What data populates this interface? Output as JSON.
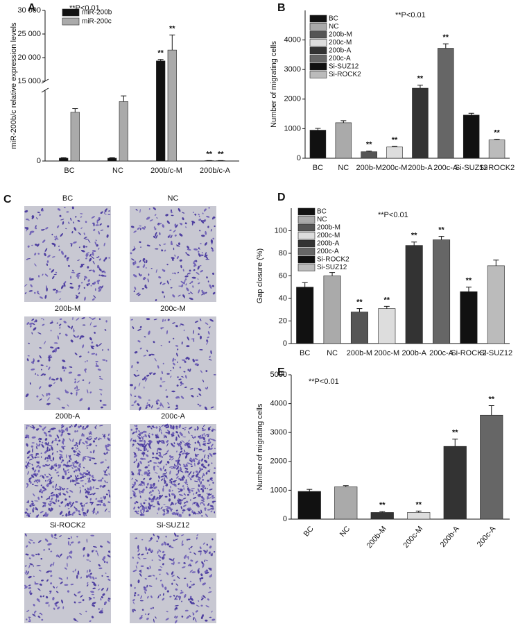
{
  "chart_data": [
    {
      "type": "bar",
      "panel": "A",
      "note": "**P<0.01",
      "ylabel": "miR-200b/c relative expression levels",
      "categories": [
        "BC",
        "NC",
        "200b/c-M",
        "200b/c-A"
      ],
      "series": [
        {
          "name": "miR-200b",
          "color": "#111111",
          "values": [
            400,
            400,
            19300,
            50
          ],
          "errors": [
            80,
            80,
            300,
            10
          ],
          "markers": [
            null,
            null,
            "**",
            "**"
          ]
        },
        {
          "name": "miR-200c",
          "color": "#aaaaaa",
          "values": [
            6900,
            8400,
            21600,
            50
          ],
          "errors": [
            500,
            800,
            3200,
            10
          ],
          "markers": [
            null,
            null,
            "**",
            "**"
          ]
        }
      ],
      "ylim": [
        0,
        30000
      ],
      "axis_break": [
        10000,
        15000
      ],
      "yticks": [
        0,
        {
          "value": 15000,
          "label": "15 000"
        },
        {
          "value": 20000,
          "label": "20 000"
        },
        {
          "value": 25000,
          "label": "25 000"
        },
        {
          "value": 30000,
          "label": "30 000"
        }
      ]
    },
    {
      "type": "bar",
      "panel": "B",
      "note": "**P<0.01",
      "ylabel": "Number of migrating cells",
      "categories": [
        "BC",
        "NC",
        "200b-M",
        "200c-M",
        "200b-A",
        "200c-A",
        "Si-SUZ12",
        "Si-ROCK2"
      ],
      "values": [
        950,
        1200,
        220,
        380,
        2370,
        3720,
        1460,
        620
      ],
      "errors": [
        60,
        70,
        20,
        20,
        100,
        150,
        60,
        20
      ],
      "markers": [
        null,
        null,
        "**",
        "**",
        "**",
        "**",
        null,
        "**"
      ],
      "colors": [
        "#111111",
        "#aaaaaa",
        "#555555",
        "#dddddd",
        "#333333",
        "#666666",
        "#111111",
        "#bbbbbb"
      ],
      "ylim": [
        0,
        5000
      ],
      "yticks": [
        0,
        1000,
        2000,
        3000,
        4000
      ],
      "legend": "upper left"
    },
    {
      "type": "bar",
      "panel": "D",
      "note": "**P<0.01",
      "ylabel": "Gap closure (%)",
      "categories": [
        "BC",
        "NC",
        "200b-M",
        "200c-M",
        "200b-A",
        "200c-A",
        "Si-ROCK2",
        "Si-SUZ12"
      ],
      "values": [
        50,
        60,
        28,
        31,
        87,
        92,
        46,
        69
      ],
      "errors": [
        4,
        3,
        3,
        2,
        3,
        3,
        4,
        5
      ],
      "markers": [
        null,
        null,
        "**",
        "**",
        "**",
        "**",
        "**",
        null
      ],
      "colors": [
        "#111111",
        "#aaaaaa",
        "#555555",
        "#dddddd",
        "#333333",
        "#666666",
        "#111111",
        "#bbbbbb"
      ],
      "ylim": [
        0,
        120
      ],
      "yticks": [
        0,
        20,
        40,
        60,
        80,
        100
      ],
      "legend": "upper left"
    },
    {
      "type": "bar",
      "panel": "E",
      "note": "**P<0.01",
      "ylabel": "Number of migrating cells",
      "categories": [
        "BC",
        "NC",
        "200b-M",
        "200c-M",
        "200b-A",
        "200c-A"
      ],
      "values": [
        960,
        1120,
        230,
        230,
        2520,
        3600
      ],
      "errors": [
        70,
        40,
        30,
        50,
        250,
        330
      ],
      "markers": [
        null,
        null,
        "**",
        "**",
        "**",
        "**"
      ],
      "colors": [
        "#111111",
        "#aaaaaa",
        "#333333",
        "#dddddd",
        "#333333",
        "#666666"
      ],
      "ylim": [
        0,
        5000
      ],
      "yticks": [
        0,
        1000,
        2000,
        3000,
        4000,
        5000
      ],
      "rotate_labels": true
    }
  ],
  "micrographs": {
    "panel": "C",
    "labels": [
      "BC",
      "NC",
      "200b-M",
      "200c-M",
      "200b-A",
      "200c-A",
      "Si-ROCK2",
      "Si-SUZ12"
    ]
  }
}
